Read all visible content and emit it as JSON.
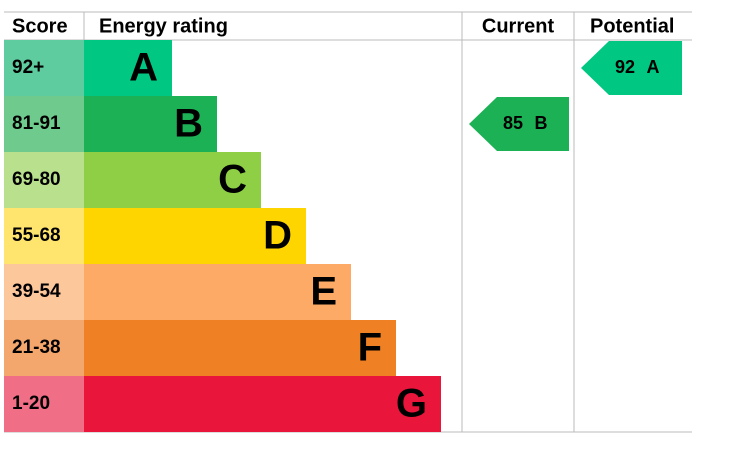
{
  "header": {
    "score": "Score",
    "rating": "Energy rating",
    "current": "Current",
    "potential": "Potential"
  },
  "bands": [
    {
      "score": "92+",
      "letter": "A",
      "color": "#00c781",
      "score_color": "#5fcc9f"
    },
    {
      "score": "81-91",
      "letter": "B",
      "color": "#1db156",
      "score_color": "#6ecb8d"
    },
    {
      "score": "69-80",
      "letter": "C",
      "color": "#8ecf45",
      "score_color": "#b9e08c"
    },
    {
      "score": "55-68",
      "letter": "D",
      "color": "#ffd500",
      "score_color": "#ffe46d"
    },
    {
      "score": "39-54",
      "letter": "E",
      "color": "#fcaa65",
      "score_color": "#fdc79c"
    },
    {
      "score": "21-38",
      "letter": "F",
      "color": "#ef8023",
      "score_color": "#f4a76c"
    },
    {
      "score": "1-20",
      "letter": "G",
      "color": "#e9153b",
      "score_color": "#f06f87"
    }
  ],
  "current": {
    "score": 85,
    "letter": "B"
  },
  "potential": {
    "score": 92,
    "letter": "A"
  }
}
